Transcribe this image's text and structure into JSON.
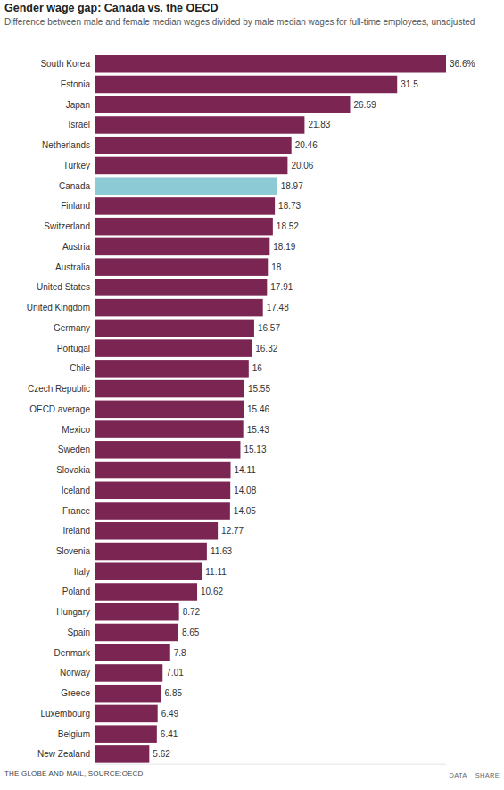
{
  "chart_data": {
    "type": "bar",
    "orientation": "horizontal",
    "title": "Gender wage gap: Canada vs. the OECD",
    "subtitle": "Difference between male and female median wages divided by male median wages for full-time employees, unadjusted",
    "source": "THE GLOBE AND MAIL, SOURCE:OECD",
    "footer_links": [
      "DATA",
      "SHARE"
    ],
    "categories": [
      "South Korea",
      "Estonia",
      "Japan",
      "Israel",
      "Netherlands",
      "Turkey",
      "Canada",
      "Finland",
      "Switzerland",
      "Austria",
      "Australia",
      "United States",
      "United Kingdom",
      "Germany",
      "Portugal",
      "Chile",
      "Czech Republic",
      "OECD average",
      "Mexico",
      "Sweden",
      "Slovakia",
      "Iceland",
      "France",
      "Ireland",
      "Slovenia",
      "Italy",
      "Poland",
      "Hungary",
      "Spain",
      "Denmark",
      "Norway",
      "Greece",
      "Luxembourg",
      "Belgium",
      "New Zealand"
    ],
    "values": [
      36.6,
      31.5,
      26.59,
      21.83,
      20.46,
      20.06,
      18.97,
      18.73,
      18.52,
      18.19,
      18,
      17.91,
      17.48,
      16.57,
      16.32,
      16,
      15.55,
      15.46,
      15.43,
      15.13,
      14.11,
      14.08,
      14.05,
      12.77,
      11.63,
      11.11,
      10.62,
      8.72,
      8.65,
      7.8,
      7.01,
      6.85,
      6.49,
      6.41,
      5.62
    ],
    "value_labels": [
      "36.6%",
      "31.5",
      "26.59",
      "21.83",
      "20.46",
      "20.06",
      "18.97",
      "18.73",
      "18.52",
      "18.19",
      "18",
      "17.91",
      "17.48",
      "16.57",
      "16.32",
      "16",
      "15.55",
      "15.46",
      "15.43",
      "15.13",
      "14.11",
      "14.08",
      "14.05",
      "12.77",
      "11.63",
      "11.11",
      "10.62",
      "8.72",
      "8.65",
      "7.8",
      "7.01",
      "6.85",
      "6.49",
      "6.41",
      "5.62"
    ],
    "colors": [
      "#7b2553",
      "#7b2553",
      "#7b2553",
      "#7b2553",
      "#7b2553",
      "#7b2553",
      "#8ccbd5",
      "#7b2553",
      "#7b2553",
      "#7b2553",
      "#7b2553",
      "#7b2553",
      "#7b2553",
      "#7b2553",
      "#7b2553",
      "#7b2553",
      "#7b2553",
      "#7b2553",
      "#7b2553",
      "#7b2553",
      "#7b2553",
      "#7b2553",
      "#7b2553",
      "#7b2553",
      "#7b2553",
      "#7b2553",
      "#7b2553",
      "#7b2553",
      "#7b2553",
      "#7b2553",
      "#7b2553",
      "#7b2553",
      "#7b2553",
      "#7b2553",
      "#7b2553"
    ],
    "xlim": [
      0,
      36.6
    ],
    "data_labels": true,
    "tick_labels": "y",
    "grid": false
  }
}
